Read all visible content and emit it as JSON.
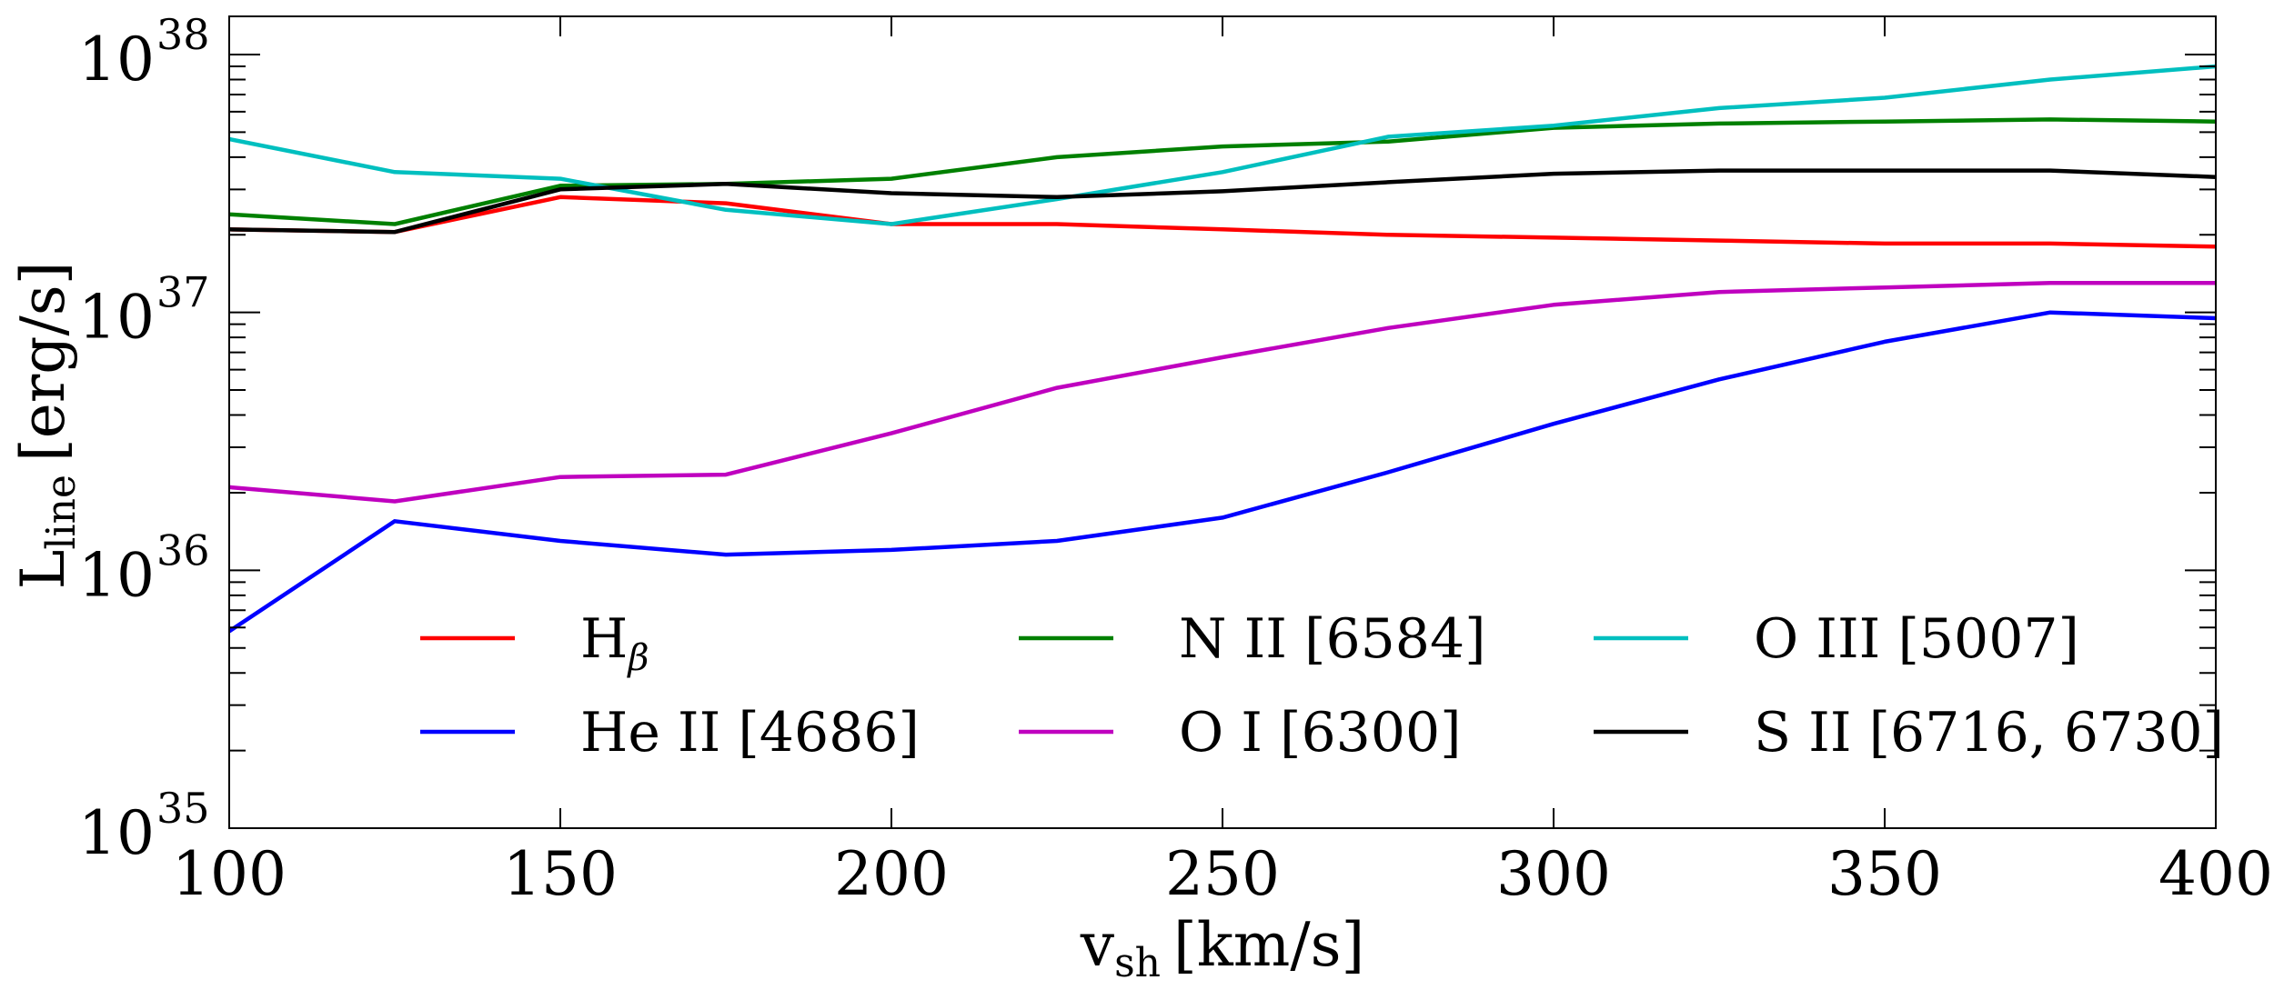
{
  "chart_data": {
    "type": "line",
    "title": "",
    "xlabel": "v",
    "xlabel_sub": "sh",
    "xlabel_units": "[km/s]",
    "ylabel": "L",
    "ylabel_sub": "line",
    "ylabel_units": "[erg/s]",
    "xlim": [
      100,
      400
    ],
    "ylim": [
      1e+35,
      2e+38
    ],
    "yscale": "log",
    "grid": false,
    "x_ticks": [
      100,
      150,
      200,
      250,
      300,
      350,
      400
    ],
    "x_tick_labels": [
      "100",
      "150",
      "200",
      "250",
      "300",
      "350",
      "400"
    ],
    "y_ticks": [
      {
        "value": 1e+35,
        "base": "10",
        "exponent": "35"
      },
      {
        "value": 1e+36,
        "base": "10",
        "exponent": "36"
      },
      {
        "value": 1e+37,
        "base": "10",
        "exponent": "37"
      },
      {
        "value": 1e+38,
        "base": "10",
        "exponent": "38"
      }
    ],
    "legend_placement": "lower-center",
    "x": [
      100,
      125,
      150,
      175,
      200,
      225,
      250,
      275,
      300,
      325,
      350,
      375,
      400
    ],
    "series": [
      {
        "name": "H",
        "name_sub": "β",
        "color": "#ff0000",
        "values": [
          2.1e+37,
          2.05e+37,
          2.8e+37,
          2.65e+37,
          2.2e+37,
          2.2e+37,
          2.1e+37,
          2e+37,
          1.95e+37,
          1.9e+37,
          1.85e+37,
          1.85e+37,
          1.8e+37
        ]
      },
      {
        "name": "He II [4686]",
        "name_sub": "",
        "color": "#0000ff",
        "values": [
          5.8e+35,
          1.55e+36,
          1.3e+36,
          1.15e+36,
          1.2e+36,
          1.3e+36,
          1.6e+36,
          2.4e+36,
          3.7e+36,
          5.5e+36,
          7.7e+36,
          1e+37,
          9.5e+36
        ]
      },
      {
        "name": "N II [6584]",
        "name_sub": "",
        "color": "#008000",
        "values": [
          2.4e+37,
          2.2e+37,
          3.1e+37,
          3.15e+37,
          3.3e+37,
          4e+37,
          4.4e+37,
          4.6e+37,
          5.2e+37,
          5.4e+37,
          5.5e+37,
          5.6e+37,
          5.5e+37
        ]
      },
      {
        "name": "O I [6300]",
        "name_sub": "",
        "color": "#bf00bf",
        "values": [
          2.1e+36,
          1.85e+36,
          2.3e+36,
          2.35e+36,
          3.4e+36,
          5.1e+36,
          6.7e+36,
          8.7e+36,
          1.07e+37,
          1.2e+37,
          1.25e+37,
          1.3e+37,
          1.3e+37
        ]
      },
      {
        "name": "O III [5007]",
        "name_sub": "",
        "color": "#00bfbf",
        "values": [
          4.7e+37,
          3.5e+37,
          3.3e+37,
          2.5e+37,
          2.2e+37,
          2.75e+37,
          3.5e+37,
          4.8e+37,
          5.3e+37,
          6.2e+37,
          6.8e+37,
          8e+37,
          9e+37
        ]
      },
      {
        "name": "S II [6716, 6730]",
        "name_sub": "",
        "color": "#000000",
        "values": [
          2.1e+37,
          2.05e+37,
          3e+37,
          3.15e+37,
          2.9e+37,
          2.8e+37,
          2.95e+37,
          3.2e+37,
          3.45e+37,
          3.55e+37,
          3.55e+37,
          3.55e+37,
          3.35e+37
        ]
      }
    ]
  }
}
